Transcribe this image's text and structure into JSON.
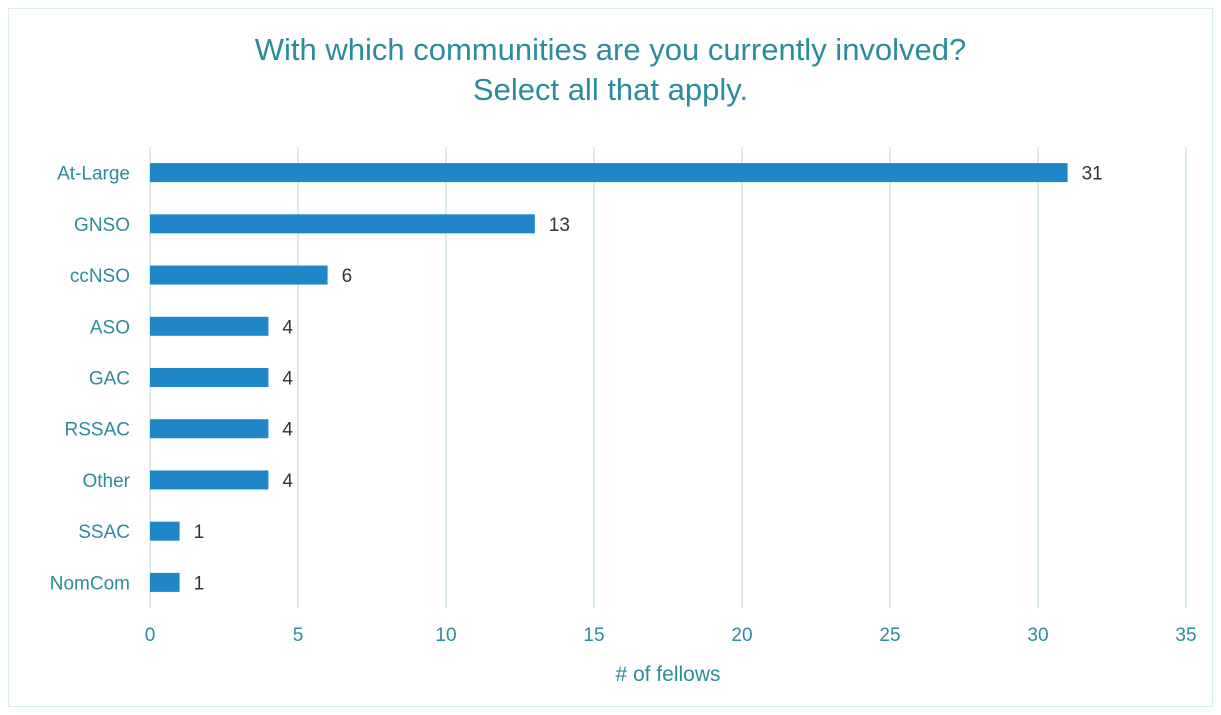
{
  "chart_data": {
    "type": "bar",
    "orientation": "horizontal",
    "title_lines": [
      "With which communities are you currently involved?",
      "Select all that apply."
    ],
    "categories": [
      "At-Large",
      "GNSO",
      "ccNSO",
      "ASO",
      "GAC",
      "RSSAC",
      "Other",
      "SSAC",
      "NomCom"
    ],
    "values": [
      31,
      13,
      6,
      4,
      4,
      4,
      4,
      1,
      1
    ],
    "xlabel": "# of fellows",
    "ylabel": "",
    "xlim": [
      0,
      35
    ],
    "xticks": [
      0,
      5,
      10,
      15,
      20,
      25,
      30,
      35
    ],
    "grid": "vertical",
    "data_labels": true,
    "colors": {
      "bar": "#1f87c8",
      "grid": "#cfe6ea",
      "text": "#2b8c9b",
      "value_label": "#333333"
    }
  }
}
